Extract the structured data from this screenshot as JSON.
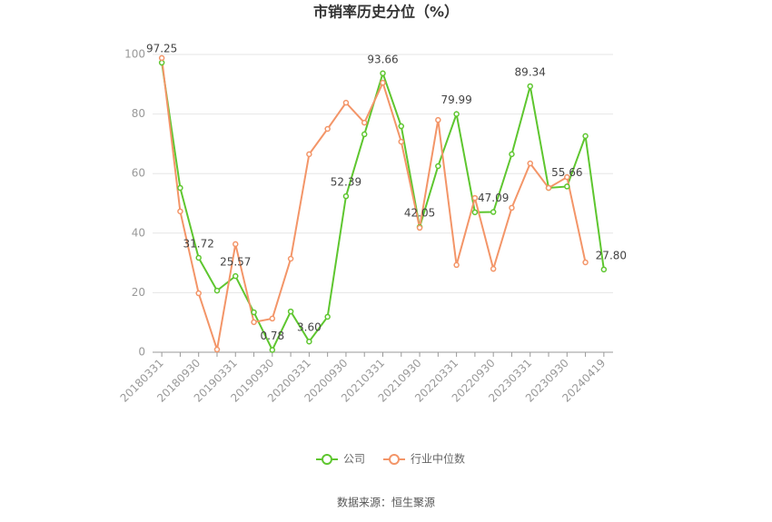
{
  "chart_data": {
    "type": "line",
    "title": "市销率历史分位（%）",
    "source": "数据来源：恒生聚源",
    "categories": [
      "20180331",
      null,
      "20180930",
      null,
      "20190331",
      null,
      "20190930",
      null,
      "20200331",
      null,
      "20200930",
      null,
      "20210331",
      null,
      "20210930",
      null,
      "20220331",
      null,
      "20220930",
      null,
      "20230331",
      null,
      "20230930",
      null,
      "20240419"
    ],
    "series": [
      {
        "name": "公司",
        "color": "#5ec62f",
        "values": [
          97.25,
          55.2,
          31.72,
          20.7,
          25.57,
          13.4,
          0.78,
          13.7,
          3.6,
          11.9,
          52.39,
          73.2,
          93.66,
          75.9,
          42.05,
          62.5,
          79.99,
          47.0,
          47.09,
          66.5,
          89.34,
          55.2,
          55.66,
          72.6,
          27.8
        ],
        "value_labels": [
          "97.25",
          null,
          "31.72",
          null,
          "25.57",
          null,
          "0.78",
          null,
          "3.60",
          null,
          "52.39",
          null,
          "93.66",
          null,
          "42.05",
          null,
          "79.99",
          null,
          "47.09",
          null,
          "89.34",
          null,
          "55.66",
          null,
          "27.80"
        ]
      },
      {
        "name": "行业中位数",
        "color": "#f39568",
        "values": [
          98.8,
          47.3,
          19.8,
          0.9,
          36.3,
          10.1,
          11.3,
          31.4,
          66.5,
          75.0,
          83.8,
          77.1,
          90.5,
          70.7,
          41.8,
          78.0,
          29.3,
          51.8,
          28.0,
          48.5,
          63.4,
          55.2,
          58.8,
          30.2,
          null
        ]
      }
    ],
    "ylim": [
      0,
      100
    ],
    "yticks": [
      0,
      20,
      40,
      60,
      80,
      100
    ],
    "grid": true
  }
}
